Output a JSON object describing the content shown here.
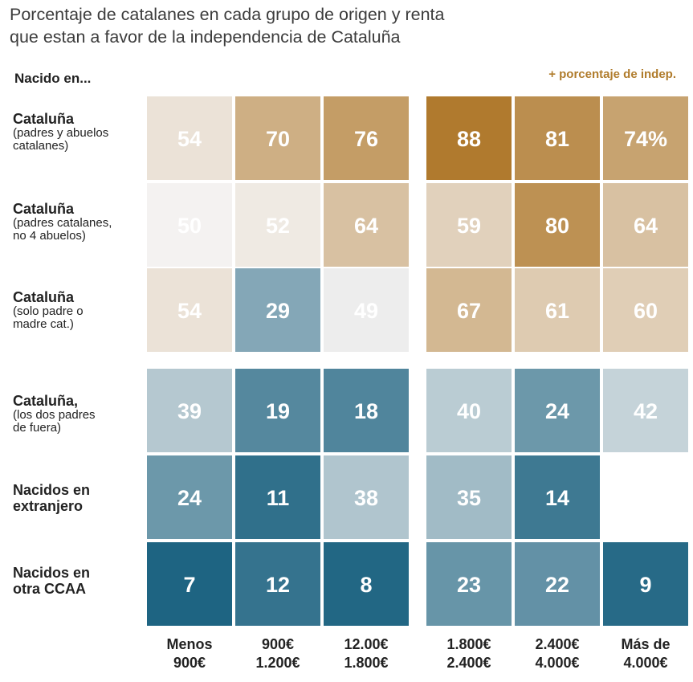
{
  "header": {
    "subtitle_line1": "Porcentaje de catalanes en cada grupo de origen y renta",
    "subtitle_line2": "que estan a favor de la independencia de Cataluña",
    "row_header": "Nacido en...",
    "legend": "+ porcentaje de indep."
  },
  "chart_data": {
    "type": "heatmap",
    "title": "Porcentaje de catalanes en cada grupo de origen y renta que estan a favor de la independencia de Cataluña",
    "value_suffix_first_cell": "%",
    "columns": [
      {
        "line1": "Menos",
        "line2": "900€"
      },
      {
        "line1": "900€",
        "line2": "1.200€"
      },
      {
        "line1": "12.00€",
        "line2": "1.800€"
      },
      {
        "line1": "1.800€",
        "line2": "2.400€"
      },
      {
        "line1": "2.400€",
        "line2": "4.000€"
      },
      {
        "line1": "Más de",
        "line2": "4.000€"
      }
    ],
    "rows": [
      {
        "main": "Cataluña",
        "sub": [
          "(padres y abuelos",
          "catalanes)"
        ],
        "values": [
          54,
          70,
          76,
          88,
          81,
          74
        ]
      },
      {
        "main": "Cataluña",
        "sub": [
          "(padres catalanes,",
          "no 4 abuelos)"
        ],
        "values": [
          50,
          52,
          64,
          59,
          80,
          64
        ]
      },
      {
        "main": "Cataluña",
        "sub": [
          "(solo padre o",
          "madre cat.)"
        ],
        "values": [
          54,
          29,
          49,
          67,
          61,
          60
        ]
      },
      {
        "main": "Cataluña,",
        "sub": [
          "(los dos padres",
          "de fuera)"
        ],
        "values": [
          39,
          19,
          18,
          40,
          24,
          42
        ]
      },
      {
        "main": "Nacidos en",
        "sub": [
          "extranjero"
        ],
        "values": [
          24,
          11,
          38,
          35,
          14,
          null
        ]
      },
      {
        "main": "Nacidos en",
        "sub": [
          "otra CCAA"
        ],
        "values": [
          7,
          12,
          8,
          23,
          22,
          9
        ]
      }
    ],
    "color_scale": {
      "low": "#1e6482",
      "mid": "#f4f2f1",
      "high": "#b07a2e",
      "mid_value": 50
    }
  }
}
